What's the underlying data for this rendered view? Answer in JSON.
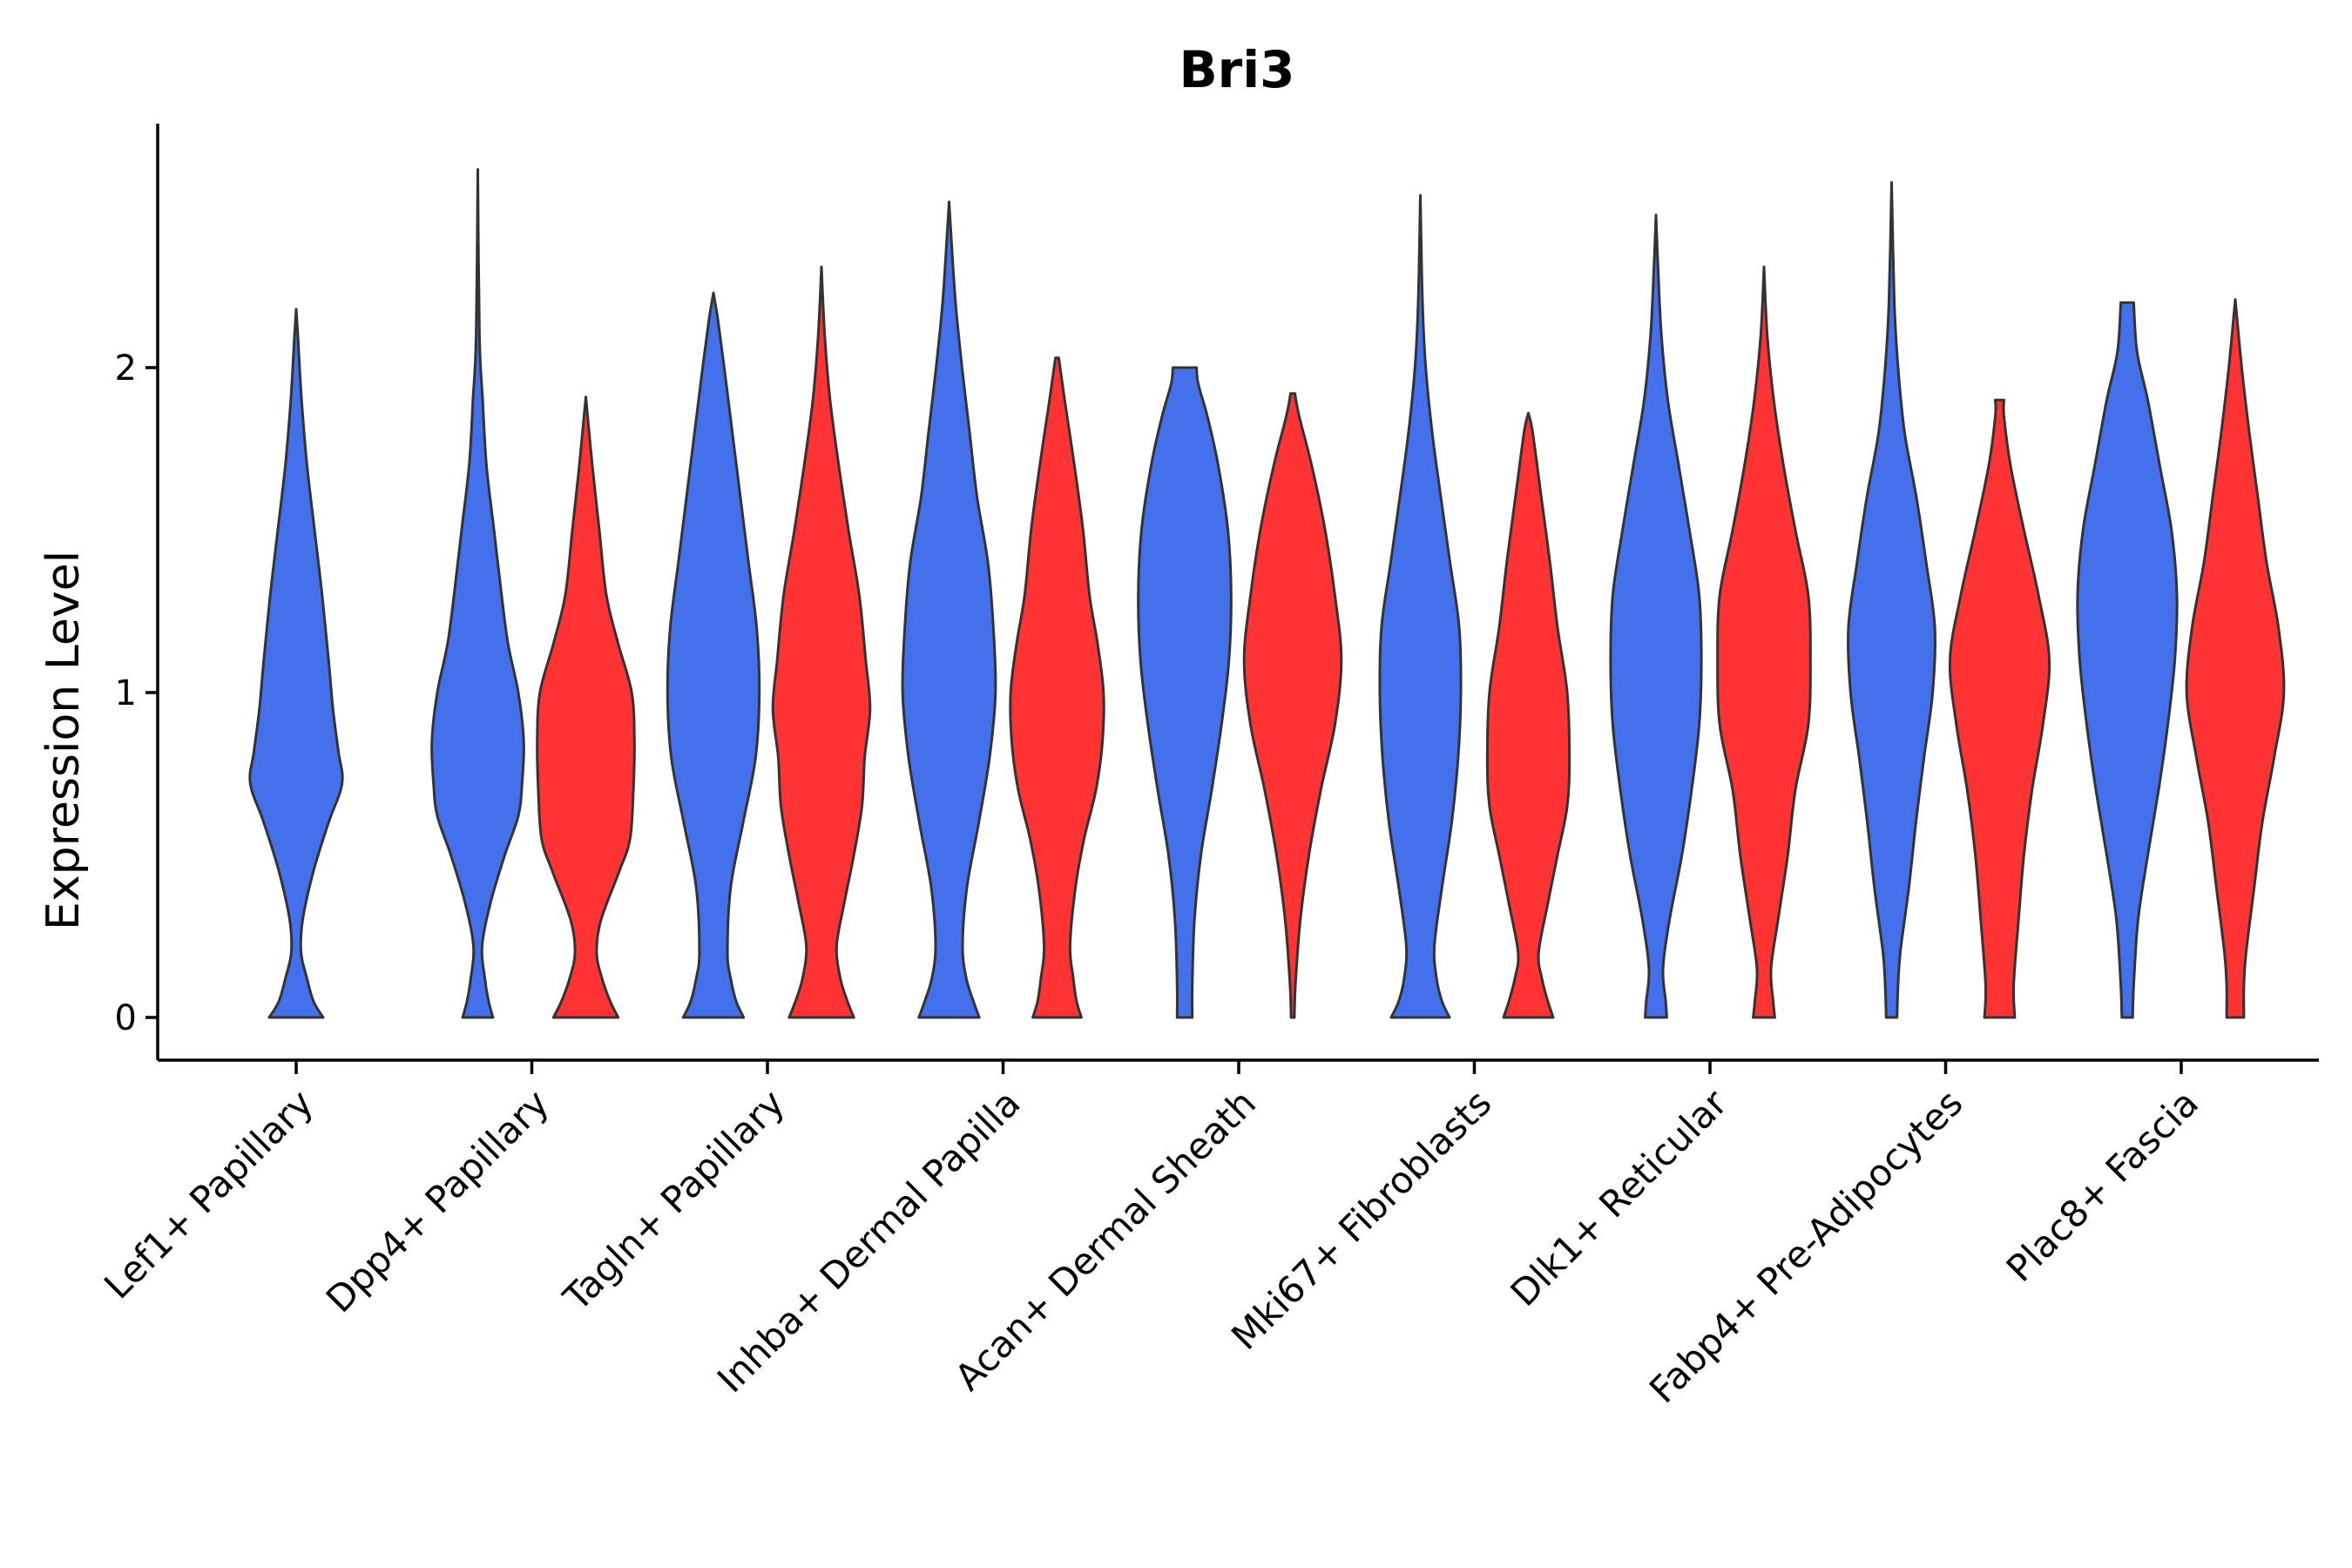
{
  "chart_data": {
    "type": "violin",
    "title": "Bri3",
    "xlabel": "",
    "ylabel": "Expression Level",
    "ylim": [
      -0.13,
      2.75
    ],
    "yticks": [
      0,
      1,
      2
    ],
    "series_colors": [
      "#4470EC",
      "#FF3333"
    ],
    "categories": [
      "Lef1+ Papillary",
      "Dpp4+ Papillary",
      "Tagln+ Papillary",
      "Inhba+ Dermal Papilla",
      "Acan+ Dermal Sheath",
      "Mki67+ Fibroblasts",
      "Dlk1+ Reticular",
      "Fabp4+ Pre-Adipocytes",
      "Plac8+ Fascia"
    ],
    "violins": [
      {
        "category": "Lef1+ Papillary",
        "series": 0,
        "max": 2.18,
        "profile": [
          [
            0,
            0.5
          ],
          [
            0.05,
            0.32
          ],
          [
            0.12,
            0.2
          ],
          [
            0.2,
            0.09
          ],
          [
            0.3,
            0.12
          ],
          [
            0.45,
            0.32
          ],
          [
            0.6,
            0.6
          ],
          [
            0.72,
            0.85
          ],
          [
            0.82,
            0.78
          ],
          [
            0.95,
            0.68
          ],
          [
            1.1,
            0.6
          ],
          [
            1.3,
            0.48
          ],
          [
            1.5,
            0.34
          ],
          [
            1.7,
            0.2
          ],
          [
            1.9,
            0.1
          ],
          [
            2.1,
            0.03
          ],
          [
            2.18,
            0
          ]
        ]
      },
      {
        "category": "Dpp4+ Papillary",
        "series": 0,
        "max": 2.61,
        "profile": [
          [
            0,
            0.28
          ],
          [
            0.05,
            0.2
          ],
          [
            0.12,
            0.13
          ],
          [
            0.22,
            0.08
          ],
          [
            0.35,
            0.23
          ],
          [
            0.5,
            0.5
          ],
          [
            0.62,
            0.75
          ],
          [
            0.72,
            0.82
          ],
          [
            0.85,
            0.85
          ],
          [
            1.0,
            0.75
          ],
          [
            1.15,
            0.56
          ],
          [
            1.3,
            0.44
          ],
          [
            1.5,
            0.3
          ],
          [
            1.7,
            0.16
          ],
          [
            1.9,
            0.09
          ],
          [
            2.1,
            0.03
          ],
          [
            2.61,
            0
          ]
        ]
      },
      {
        "category": "Dpp4+ Papillary",
        "series": 1,
        "max": 1.91,
        "profile": [
          [
            0,
            0.6
          ],
          [
            0.05,
            0.45
          ],
          [
            0.12,
            0.3
          ],
          [
            0.2,
            0.2
          ],
          [
            0.3,
            0.28
          ],
          [
            0.45,
            0.62
          ],
          [
            0.55,
            0.82
          ],
          [
            0.7,
            0.88
          ],
          [
            0.85,
            0.9
          ],
          [
            1.0,
            0.85
          ],
          [
            1.15,
            0.6
          ],
          [
            1.3,
            0.38
          ],
          [
            1.5,
            0.25
          ],
          [
            1.7,
            0.12
          ],
          [
            1.91,
            0
          ]
        ]
      },
      {
        "category": "Tagln+ Papillary",
        "series": 0,
        "max": 2.23,
        "profile": [
          [
            0,
            0.56
          ],
          [
            0.05,
            0.42
          ],
          [
            0.12,
            0.32
          ],
          [
            0.2,
            0.26
          ],
          [
            0.4,
            0.32
          ],
          [
            0.6,
            0.55
          ],
          [
            0.8,
            0.78
          ],
          [
            1.0,
            0.85
          ],
          [
            1.2,
            0.8
          ],
          [
            1.4,
            0.65
          ],
          [
            1.6,
            0.5
          ],
          [
            1.8,
            0.35
          ],
          [
            2.0,
            0.2
          ],
          [
            2.15,
            0.08
          ],
          [
            2.23,
            0
          ]
        ]
      },
      {
        "category": "Tagln+ Papillary",
        "series": 1,
        "max": 2.31,
        "profile": [
          [
            0,
            0.6
          ],
          [
            0.05,
            0.48
          ],
          [
            0.12,
            0.35
          ],
          [
            0.22,
            0.28
          ],
          [
            0.35,
            0.42
          ],
          [
            0.5,
            0.6
          ],
          [
            0.65,
            0.75
          ],
          [
            0.8,
            0.8
          ],
          [
            0.95,
            0.9
          ],
          [
            1.1,
            0.82
          ],
          [
            1.3,
            0.7
          ],
          [
            1.5,
            0.5
          ],
          [
            1.7,
            0.32
          ],
          [
            1.9,
            0.16
          ],
          [
            2.1,
            0.06
          ],
          [
            2.31,
            0
          ]
        ]
      },
      {
        "category": "Inhba+ Dermal Papilla",
        "series": 0,
        "max": 2.51,
        "profile": [
          [
            0,
            0.56
          ],
          [
            0.05,
            0.45
          ],
          [
            0.12,
            0.32
          ],
          [
            0.22,
            0.25
          ],
          [
            0.4,
            0.33
          ],
          [
            0.6,
            0.55
          ],
          [
            0.8,
            0.75
          ],
          [
            1.0,
            0.86
          ],
          [
            1.2,
            0.82
          ],
          [
            1.4,
            0.72
          ],
          [
            1.6,
            0.52
          ],
          [
            1.8,
            0.38
          ],
          [
            2.0,
            0.24
          ],
          [
            2.2,
            0.12
          ],
          [
            2.4,
            0.04
          ],
          [
            2.51,
            0
          ]
        ]
      },
      {
        "category": "Inhba+ Dermal Papilla",
        "series": 1,
        "max": 2.03,
        "profile": [
          [
            0,
            0.45
          ],
          [
            0.05,
            0.36
          ],
          [
            0.12,
            0.3
          ],
          [
            0.22,
            0.24
          ],
          [
            0.4,
            0.34
          ],
          [
            0.55,
            0.5
          ],
          [
            0.7,
            0.72
          ],
          [
            0.85,
            0.84
          ],
          [
            1.0,
            0.86
          ],
          [
            1.15,
            0.75
          ],
          [
            1.3,
            0.6
          ],
          [
            1.5,
            0.48
          ],
          [
            1.7,
            0.32
          ],
          [
            1.9,
            0.14
          ],
          [
            2.03,
            0.03
          ]
        ]
      },
      {
        "category": "Acan+ Dermal Sheath",
        "series": 0,
        "max": 2.0,
        "profile": [
          [
            0,
            0.14
          ],
          [
            0.1,
            0.14
          ],
          [
            0.3,
            0.18
          ],
          [
            0.5,
            0.3
          ],
          [
            0.7,
            0.5
          ],
          [
            0.9,
            0.68
          ],
          [
            1.1,
            0.82
          ],
          [
            1.3,
            0.86
          ],
          [
            1.5,
            0.8
          ],
          [
            1.7,
            0.62
          ],
          [
            1.85,
            0.42
          ],
          [
            1.95,
            0.25
          ],
          [
            2.0,
            0.22
          ]
        ]
      },
      {
        "category": "Acan+ Dermal Sheath",
        "series": 1,
        "max": 1.92,
        "profile": [
          [
            0,
            0.03
          ],
          [
            0.1,
            0.05
          ],
          [
            0.3,
            0.14
          ],
          [
            0.5,
            0.3
          ],
          [
            0.7,
            0.52
          ],
          [
            0.9,
            0.78
          ],
          [
            1.1,
            0.9
          ],
          [
            1.3,
            0.78
          ],
          [
            1.5,
            0.6
          ],
          [
            1.7,
            0.35
          ],
          [
            1.85,
            0.12
          ],
          [
            1.92,
            0.04
          ]
        ]
      },
      {
        "category": "Mki67+ Fibroblasts",
        "series": 0,
        "max": 2.53,
        "profile": [
          [
            0,
            0.54
          ],
          [
            0.05,
            0.4
          ],
          [
            0.12,
            0.3
          ],
          [
            0.22,
            0.26
          ],
          [
            0.4,
            0.4
          ],
          [
            0.6,
            0.58
          ],
          [
            0.8,
            0.7
          ],
          [
            1.0,
            0.75
          ],
          [
            1.2,
            0.72
          ],
          [
            1.4,
            0.55
          ],
          [
            1.6,
            0.38
          ],
          [
            1.8,
            0.22
          ],
          [
            2.0,
            0.1
          ],
          [
            2.2,
            0.04
          ],
          [
            2.53,
            0
          ]
        ]
      },
      {
        "category": "Mki67+ Fibroblasts",
        "series": 1,
        "max": 1.86,
        "profile": [
          [
            0,
            0.46
          ],
          [
            0.05,
            0.36
          ],
          [
            0.12,
            0.25
          ],
          [
            0.2,
            0.19
          ],
          [
            0.35,
            0.36
          ],
          [
            0.5,
            0.54
          ],
          [
            0.65,
            0.72
          ],
          [
            0.8,
            0.76
          ],
          [
            1.0,
            0.72
          ],
          [
            1.2,
            0.54
          ],
          [
            1.4,
            0.4
          ],
          [
            1.6,
            0.24
          ],
          [
            1.8,
            0.08
          ],
          [
            1.86,
            0
          ]
        ]
      },
      {
        "category": "Dlk1+ Reticular",
        "series": 0,
        "max": 2.47,
        "profile": [
          [
            0,
            0.2
          ],
          [
            0.05,
            0.18
          ],
          [
            0.15,
            0.13
          ],
          [
            0.3,
            0.25
          ],
          [
            0.5,
            0.48
          ],
          [
            0.7,
            0.66
          ],
          [
            0.9,
            0.8
          ],
          [
            1.1,
            0.84
          ],
          [
            1.3,
            0.8
          ],
          [
            1.5,
            0.62
          ],
          [
            1.7,
            0.42
          ],
          [
            1.9,
            0.22
          ],
          [
            2.1,
            0.1
          ],
          [
            2.3,
            0.04
          ],
          [
            2.47,
            0
          ]
        ]
      },
      {
        "category": "Dlk1+ Reticular",
        "series": 1,
        "max": 2.31,
        "profile": [
          [
            0,
            0.2
          ],
          [
            0.05,
            0.17
          ],
          [
            0.15,
            0.13
          ],
          [
            0.3,
            0.26
          ],
          [
            0.5,
            0.44
          ],
          [
            0.7,
            0.58
          ],
          [
            0.9,
            0.82
          ],
          [
            1.1,
            0.86
          ],
          [
            1.3,
            0.82
          ],
          [
            1.5,
            0.58
          ],
          [
            1.7,
            0.36
          ],
          [
            1.9,
            0.18
          ],
          [
            2.1,
            0.06
          ],
          [
            2.31,
            0
          ]
        ]
      },
      {
        "category": "Fabp4+ Pre-Adipocytes",
        "series": 0,
        "max": 2.57,
        "profile": [
          [
            0,
            0.1
          ],
          [
            0.1,
            0.12
          ],
          [
            0.2,
            0.16
          ],
          [
            0.4,
            0.32
          ],
          [
            0.6,
            0.45
          ],
          [
            0.8,
            0.6
          ],
          [
            1.0,
            0.76
          ],
          [
            1.2,
            0.8
          ],
          [
            1.4,
            0.64
          ],
          [
            1.6,
            0.46
          ],
          [
            1.8,
            0.24
          ],
          [
            2.0,
            0.12
          ],
          [
            2.2,
            0.05
          ],
          [
            2.57,
            0
          ]
        ]
      },
      {
        "category": "Fabp4+ Pre-Adipocytes",
        "series": 1,
        "max": 1.9,
        "profile": [
          [
            0,
            0.28
          ],
          [
            0.1,
            0.26
          ],
          [
            0.3,
            0.35
          ],
          [
            0.5,
            0.45
          ],
          [
            0.7,
            0.6
          ],
          [
            0.9,
            0.8
          ],
          [
            1.1,
            0.92
          ],
          [
            1.3,
            0.72
          ],
          [
            1.5,
            0.45
          ],
          [
            1.7,
            0.2
          ],
          [
            1.85,
            0.08
          ],
          [
            1.9,
            0.08
          ]
        ]
      },
      {
        "category": "Plac8+ Fascia",
        "series": 0,
        "max": 2.2,
        "profile": [
          [
            0,
            0.1
          ],
          [
            0.1,
            0.12
          ],
          [
            0.3,
            0.2
          ],
          [
            0.5,
            0.38
          ],
          [
            0.7,
            0.58
          ],
          [
            0.9,
            0.75
          ],
          [
            1.1,
            0.88
          ],
          [
            1.3,
            0.92
          ],
          [
            1.5,
            0.82
          ],
          [
            1.7,
            0.6
          ],
          [
            1.9,
            0.38
          ],
          [
            2.05,
            0.18
          ],
          [
            2.2,
            0.12
          ]
        ]
      },
      {
        "category": "Plac8+ Fascia",
        "series": 1,
        "max": 2.21,
        "profile": [
          [
            0,
            0.16
          ],
          [
            0.1,
            0.16
          ],
          [
            0.2,
            0.2
          ],
          [
            0.4,
            0.35
          ],
          [
            0.6,
            0.5
          ],
          [
            0.8,
            0.72
          ],
          [
            1.0,
            0.9
          ],
          [
            1.2,
            0.8
          ],
          [
            1.4,
            0.58
          ],
          [
            1.6,
            0.42
          ],
          [
            1.8,
            0.26
          ],
          [
            2.0,
            0.12
          ],
          [
            2.21,
            0
          ]
        ]
      }
    ]
  }
}
